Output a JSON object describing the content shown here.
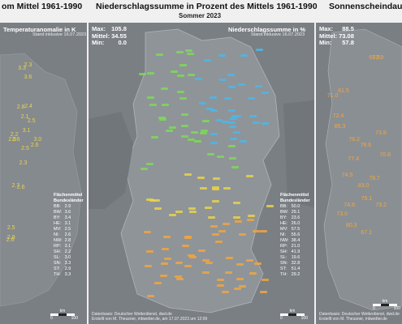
{
  "left": {
    "title": "om Mittel 1961-1990",
    "panel_title": "Temperaturanomalie in K",
    "stand": "Stand inklusive 16.07.2023",
    "legend_head_1": "Flächenmittel",
    "legend_head_2": "Bundesländer",
    "states": [
      {
        "code": "BB:",
        "val": "2.9"
      },
      {
        "code": "BW:",
        "val": "3.6"
      },
      {
        "code": "BY:",
        "val": "3.4"
      },
      {
        "code": "HE:",
        "val": "3.1"
      },
      {
        "code": "MV:",
        "val": "2.5"
      },
      {
        "code": "NI:",
        "val": "2.6"
      },
      {
        "code": "NW:",
        "val": "2.8"
      },
      {
        "code": "RP:",
        "val": "3.1"
      },
      {
        "code": "SH:",
        "val": "2.2"
      },
      {
        "code": "SL:",
        "val": "3.0"
      },
      {
        "code": "SN:",
        "val": "3.3"
      },
      {
        "code": "ST:",
        "val": "2.9"
      },
      {
        "code": "TH:",
        "val": "3.3"
      }
    ],
    "samples": [
      "2.3",
      "2.6",
      "2.5",
      "2.8",
      "2.3",
      "2.7",
      "2.5",
      "2.6",
      "2.9",
      "2.2",
      "2.4",
      "3.0",
      "2.1",
      "2.5",
      "2.8",
      "2.6",
      "3.1",
      "3.6",
      "3.3",
      "2.6"
    ],
    "scale": {
      "zero": "0",
      "hundred": "100",
      "km": "km"
    }
  },
  "center": {
    "title": "Niederschlagssumme in Prozent des Mittels 1961-1990",
    "subtitle": "Sommer 2023",
    "stats": {
      "max_label": "Max:",
      "max": "105.8",
      "mean_label": "Mittel:",
      "mean": "34.55",
      "min_label": "Min:",
      "min": "0.0"
    },
    "panel_title": "Niederschlagssumme in %",
    "stand": "Stand inklusive 16.07.2023",
    "legend_head_1": "Flächenmittel",
    "legend_head_2": "Bundesländer",
    "states": [
      {
        "code": "BB:",
        "val": "50.0"
      },
      {
        "code": "BW:",
        "val": "29.1"
      },
      {
        "code": "BY:",
        "val": "23.6"
      },
      {
        "code": "HE:",
        "val": "26.0"
      },
      {
        "code": "MV:",
        "val": "57.5"
      },
      {
        "code": "NI:",
        "val": "55.6"
      },
      {
        "code": "NW:",
        "val": "38.4"
      },
      {
        "code": "RP:",
        "val": "21.0"
      },
      {
        "code": "SH:",
        "val": "41.9"
      },
      {
        "code": "SL:",
        "val": "19.6"
      },
      {
        "code": "SN:",
        "val": "32.8"
      },
      {
        "code": "ST:",
        "val": "51.4"
      },
      {
        "code": "TH:",
        "val": "29.2"
      }
    ],
    "footer_1": "Datenbasis: Deutscher Wetterdienst, dwd.de",
    "footer_2": "Erstellt von M. Theusner, mbwetter.de, am 17.07.2023 um 12:09",
    "scale": {
      "zero": "0",
      "hundred": "100",
      "km": "km"
    }
  },
  "right": {
    "title": "Sonnenscheindaue",
    "stats": {
      "max_label": "Max:",
      "max": "88.5",
      "mean_label": "Mittel:",
      "mean": "73.08",
      "min_label": "Min:",
      "min": "57.8"
    },
    "samples": [
      "67.1",
      "71.0",
      "72.4",
      "74.5",
      "70.8",
      "76.2",
      "73.0",
      "69.9",
      "77.4",
      "75.1",
      "72.9",
      "80.3",
      "78.7",
      "74.6",
      "83.0",
      "79.2",
      "76.6",
      "81.5",
      "85.3",
      "73.8"
    ],
    "footer_1": "Datenbasis: Deutscher Wetterdienst, dwd.de",
    "footer_2": "Erstellt von M. Theusner, mbwetter.de",
    "scale": {
      "zero": "0",
      "hundred": "100",
      "km": "km"
    }
  },
  "colors": {
    "background": "#7a7f84",
    "land": "#8c9196",
    "label_warm": "#e8d44a",
    "label_green": "#7ed957",
    "label_blue": "#4db6e8",
    "label_orange": "#f0a640"
  }
}
